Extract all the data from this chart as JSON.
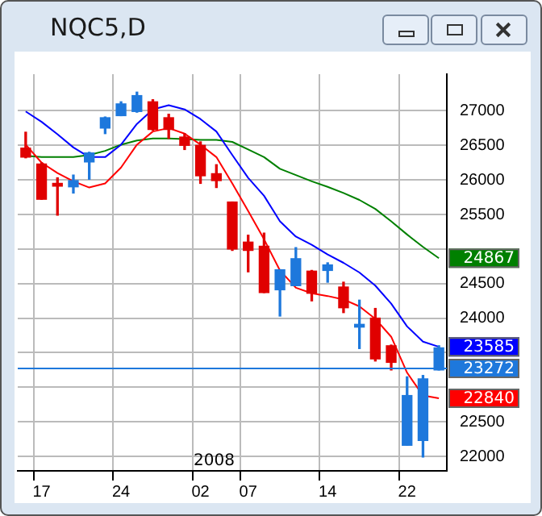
{
  "chart_data": {
    "type": "candlestick",
    "title": "NQC5,D",
    "categories": [
      null,
      "17",
      null,
      null,
      null,
      null,
      "24",
      null,
      null,
      null,
      null,
      "02",
      null,
      null,
      "07",
      null,
      null,
      null,
      null,
      "14",
      null,
      null,
      null,
      null,
      "22",
      null,
      null
    ],
    "ohlc": [
      [
        26460,
        26690,
        26320,
        26330
      ],
      [
        26230,
        26250,
        25720,
        25720
      ],
      [
        25950,
        26030,
        25490,
        25910
      ],
      [
        25900,
        26070,
        25810,
        25990
      ],
      [
        26260,
        26400,
        26010,
        26390
      ],
      [
        26750,
        26910,
        26670,
        26900
      ],
      [
        26930,
        27130,
        26930,
        27100
      ],
      [
        26990,
        27270,
        26980,
        27220
      ],
      [
        27130,
        27160,
        26720,
        26730
      ],
      [
        26900,
        26950,
        26600,
        26730
      ],
      [
        26620,
        26670,
        26440,
        26500
      ],
      [
        26500,
        26550,
        25950,
        26060
      ],
      [
        26090,
        26220,
        25890,
        25990
      ],
      [
        25680,
        25680,
        24980,
        25000
      ],
      [
        25100,
        25200,
        24670,
        24980
      ],
      [
        25040,
        25230,
        24370,
        24370
      ],
      [
        24410,
        24700,
        24030,
        24700
      ],
      [
        24470,
        25020,
        24470,
        24860
      ],
      [
        24680,
        24690,
        24250,
        24360
      ],
      [
        24690,
        24800,
        24520,
        24770
      ],
      [
        24450,
        24520,
        24080,
        24150
      ],
      [
        23870,
        24260,
        23560,
        23910
      ],
      [
        24000,
        24140,
        23380,
        23410
      ],
      [
        23600,
        23610,
        23250,
        23360
      ],
      [
        22160,
        23150,
        22160,
        22880
      ],
      [
        22230,
        23170,
        21990,
        23120
      ],
      [
        23250,
        23600,
        23250,
        23570
      ]
    ],
    "colors": [
      "#e00000",
      "#e00000",
      "#e00000",
      "#1e78dc",
      "#1e78dc",
      "#1e78dc",
      "#1e78dc",
      "#1e78dc",
      "#e00000",
      "#e00000",
      "#e00000",
      "#e00000",
      "#e00000",
      "#e00000",
      "#e00000",
      "#e00000",
      "#1e78dc",
      "#1e78dc",
      "#e00000",
      "#1e78dc",
      "#e00000",
      "#1e78dc",
      "#e00000",
      "#e00000",
      "#1e78dc",
      "#1e78dc",
      "#1e78dc"
    ],
    "series": [
      {
        "type": "line",
        "color": "#ff0000",
        "values": [
          26510,
          26250,
          26100,
          25980,
          25890,
          25950,
          26180,
          26510,
          26700,
          26750,
          26670,
          26510,
          26330,
          25950,
          25550,
          25140,
          24690,
          24440,
          24360,
          24320,
          24270,
          24170,
          23990,
          23730,
          23210,
          22880,
          22840
        ],
        "value_labels": [
          null,
          null,
          null,
          null,
          null,
          null,
          null,
          null,
          null,
          null,
          null,
          null,
          null,
          null,
          null,
          null,
          null,
          null,
          null,
          null,
          null,
          null,
          null,
          null,
          null,
          null,
          "22840"
        ]
      },
      {
        "type": "line",
        "color": "#0000ff",
        "values": [
          26990,
          26840,
          26660,
          26470,
          26330,
          26330,
          26510,
          26810,
          27020,
          27080,
          27020,
          26880,
          26700,
          26360,
          26030,
          25770,
          25400,
          25180,
          25060,
          24920,
          24800,
          24660,
          24470,
          24210,
          23880,
          23660,
          23585
        ],
        "value_labels": [
          null,
          null,
          null,
          null,
          null,
          null,
          null,
          null,
          null,
          null,
          null,
          null,
          null,
          null,
          null,
          null,
          null,
          null,
          null,
          null,
          null,
          null,
          null,
          null,
          null,
          null,
          "23585"
        ]
      },
      {
        "type": "line",
        "color": "#008000",
        "values": [
          26350,
          26330,
          26330,
          26330,
          26360,
          26420,
          26510,
          26570,
          26600,
          26600,
          26590,
          26580,
          26580,
          26550,
          26440,
          26330,
          26160,
          26070,
          25980,
          25900,
          25810,
          25710,
          25580,
          25400,
          25210,
          25030,
          24867
        ],
        "value_labels": [
          null,
          null,
          null,
          null,
          null,
          null,
          null,
          null,
          null,
          null,
          null,
          null,
          null,
          null,
          null,
          null,
          null,
          null,
          null,
          null,
          null,
          null,
          null,
          null,
          null,
          null,
          "24867"
        ]
      }
    ],
    "ylim": [
      21790,
      27530
    ],
    "yticks": [
      22000,
      22500,
      {
        "value": 23000,
        "label": null
      },
      {
        "value": 23500,
        "label": null
      },
      24000,
      24500,
      {
        "value": 25000,
        "label": null
      },
      25500,
      26000,
      26500,
      27000
    ],
    "ref_lines": [
      {
        "axis": "y",
        "value": 23272,
        "label": "23272",
        "color": "#1e78dc"
      }
    ],
    "annotations": [
      "2008"
    ],
    "grid": true
  }
}
